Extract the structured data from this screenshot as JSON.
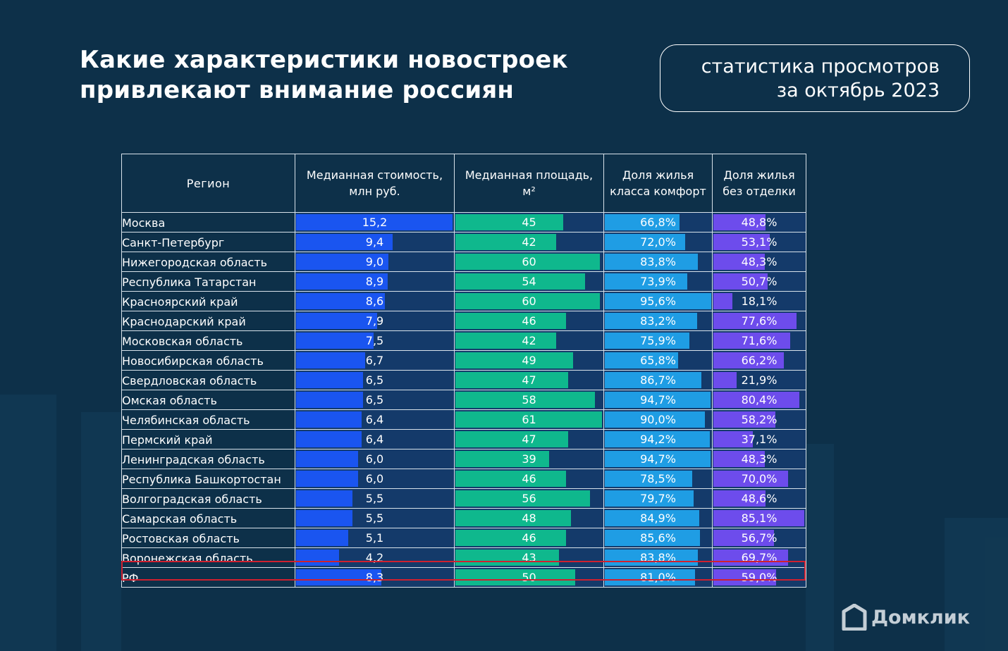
{
  "title_lines": [
    "Какие характеристики новостроек",
    "привлекают внимание россиян"
  ],
  "subtitle_lines": [
    "статистика просмотров",
    "за октябрь 2023"
  ],
  "logo": {
    "icon": "house-icon",
    "text": "Домклик"
  },
  "colors": {
    "background": "#0d3049",
    "track": "#143a6a",
    "price": "#1a55f0",
    "area": "#0fb88d",
    "comfort": "#1f9de4",
    "unfinished": "#6d4cec",
    "highlight": "#d0202f"
  },
  "chart_data": {
    "type": "table",
    "title": "Какие характеристики новостроек привлекают внимание россиян",
    "subtitle": "статистика просмотров за октябрь 2023",
    "columns": [
      {
        "key": "region",
        "label": "Регион"
      },
      {
        "key": "price",
        "label_lines": [
          "Медианная стоимость,",
          "млн руб."
        ],
        "max": 15.2
      },
      {
        "key": "area",
        "label_lines": [
          "Медианная площадь,",
          "м²"
        ],
        "max": 61
      },
      {
        "key": "comfort",
        "label_lines": [
          "Доля жилья",
          "класса комфорт"
        ],
        "max": 100
      },
      {
        "key": "unfinished",
        "label_lines": [
          "Доля жилья",
          "без отделки"
        ],
        "max": 85.1
      }
    ],
    "rows": [
      {
        "region": "Москва",
        "price": 15.2,
        "price_label": "15,2",
        "area": 45,
        "area_label": "45",
        "comfort": 66.8,
        "comfort_label": "66,8%",
        "unfinished": 48.8,
        "unfinished_label": "48,8%"
      },
      {
        "region": "Санкт-Петербург",
        "price": 9.4,
        "price_label": "9,4",
        "area": 42,
        "area_label": "42",
        "comfort": 72.0,
        "comfort_label": "72,0%",
        "unfinished": 53.1,
        "unfinished_label": "53,1%"
      },
      {
        "region": "Нижегородская область",
        "price": 9.0,
        "price_label": "9,0",
        "area": 60,
        "area_label": "60",
        "comfort": 83.8,
        "comfort_label": "83,8%",
        "unfinished": 48.3,
        "unfinished_label": "48,3%"
      },
      {
        "region": "Республика Татарстан",
        "price": 8.9,
        "price_label": "8,9",
        "area": 54,
        "area_label": "54",
        "comfort": 73.9,
        "comfort_label": "73,9%",
        "unfinished": 50.7,
        "unfinished_label": "50,7%"
      },
      {
        "region": "Красноярский край",
        "price": 8.6,
        "price_label": "8,6",
        "area": 60,
        "area_label": "60",
        "comfort": 95.6,
        "comfort_label": "95,6%",
        "unfinished": 18.1,
        "unfinished_label": "18,1%"
      },
      {
        "region": "Краснодарский край",
        "price": 7.9,
        "price_label": "7,9",
        "area": 46,
        "area_label": "46",
        "comfort": 83.2,
        "comfort_label": "83,2%",
        "unfinished": 77.6,
        "unfinished_label": "77,6%"
      },
      {
        "region": "Московская область",
        "price": 7.5,
        "price_label": "7,5",
        "area": 42,
        "area_label": "42",
        "comfort": 75.9,
        "comfort_label": "75,9%",
        "unfinished": 71.6,
        "unfinished_label": "71,6%"
      },
      {
        "region": "Новосибирская область",
        "price": 6.7,
        "price_label": "6,7",
        "area": 49,
        "area_label": "49",
        "comfort": 65.8,
        "comfort_label": "65,8%",
        "unfinished": 66.2,
        "unfinished_label": "66,2%"
      },
      {
        "region": "Свердловская область",
        "price": 6.5,
        "price_label": "6,5",
        "area": 47,
        "area_label": "47",
        "comfort": 86.7,
        "comfort_label": "86,7%",
        "unfinished": 21.9,
        "unfinished_label": "21,9%"
      },
      {
        "region": "Омская область",
        "price": 6.5,
        "price_label": "6,5",
        "area": 58,
        "area_label": "58",
        "comfort": 94.7,
        "comfort_label": "94,7%",
        "unfinished": 80.4,
        "unfinished_label": "80,4%"
      },
      {
        "region": "Челябинская область",
        "price": 6.4,
        "price_label": "6,4",
        "area": 61,
        "area_label": "61",
        "comfort": 90.0,
        "comfort_label": "90,0%",
        "unfinished": 58.2,
        "unfinished_label": "58,2%"
      },
      {
        "region": "Пермский край",
        "price": 6.4,
        "price_label": "6,4",
        "area": 47,
        "area_label": "47",
        "comfort": 94.2,
        "comfort_label": "94,2%",
        "unfinished": 37.1,
        "unfinished_label": "37,1%"
      },
      {
        "region": "Ленинградская область",
        "price": 6.0,
        "price_label": "6,0",
        "area": 39,
        "area_label": "39",
        "comfort": 94.7,
        "comfort_label": "94,7%",
        "unfinished": 48.3,
        "unfinished_label": "48,3%"
      },
      {
        "region": "Республика Башкортостан",
        "price": 6.0,
        "price_label": "6,0",
        "area": 46,
        "area_label": "46",
        "comfort": 78.5,
        "comfort_label": "78,5%",
        "unfinished": 70.0,
        "unfinished_label": "70,0%"
      },
      {
        "region": "Волгоградская область",
        "price": 5.5,
        "price_label": "5,5",
        "area": 56,
        "area_label": "56",
        "comfort": 79.7,
        "comfort_label": "79,7%",
        "unfinished": 48.6,
        "unfinished_label": "48,6%"
      },
      {
        "region": "Самарская область",
        "price": 5.5,
        "price_label": "5,5",
        "area": 48,
        "area_label": "48",
        "comfort": 84.9,
        "comfort_label": "84,9%",
        "unfinished": 85.1,
        "unfinished_label": "85,1%"
      },
      {
        "region": "Ростовская область",
        "price": 5.1,
        "price_label": "5,1",
        "area": 46,
        "area_label": "46",
        "comfort": 85.6,
        "comfort_label": "85,6%",
        "unfinished": 56.7,
        "unfinished_label": "56,7%"
      },
      {
        "region": "Воронежская область",
        "price": 4.2,
        "price_label": "4,2",
        "area": 43,
        "area_label": "43",
        "comfort": 83.8,
        "comfort_label": "83,8%",
        "unfinished": 69.7,
        "unfinished_label": "69,7%"
      }
    ],
    "total": {
      "region": "РФ",
      "price": 8.3,
      "price_label": "8,3",
      "area": 50,
      "area_label": "50",
      "comfort": 81.0,
      "comfort_label": "81,0%",
      "unfinished": 59.0,
      "unfinished_label": "59,0%"
    }
  }
}
